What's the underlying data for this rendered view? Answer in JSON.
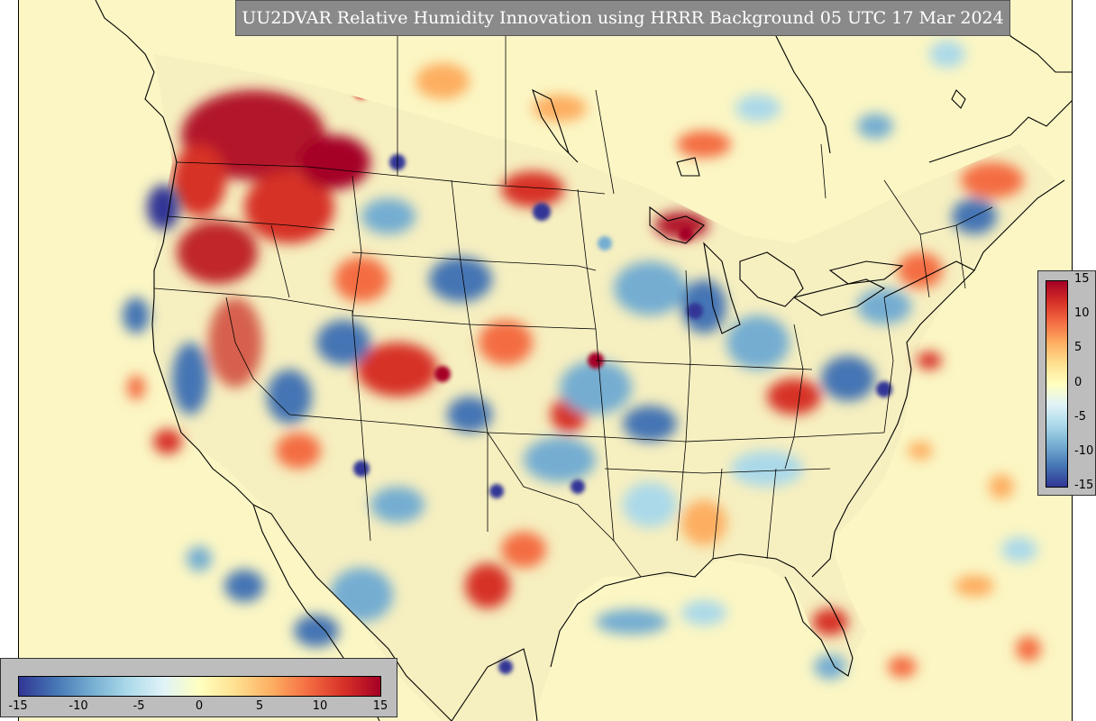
{
  "title": "UU2DVAR Relative Humidity Innovation using HRRR Background 05 UTC 17 Mar 2024",
  "colorbar": {
    "min": -15,
    "max": 15,
    "ticks_vertical": [
      "15",
      "10",
      "5",
      "0",
      "-5",
      "-10",
      "-15"
    ],
    "ticks_horizontal": [
      "-15",
      "-10",
      "-5",
      "0",
      "5",
      "10",
      "15"
    ],
    "colors": [
      "#313695",
      "#4575b4",
      "#74add1",
      "#abd9e9",
      "#e0f3f8",
      "#ffffbf",
      "#fee090",
      "#fdae61",
      "#f46d43",
      "#d73027",
      "#a50026"
    ]
  },
  "map": {
    "background_color": "#fbf6c4",
    "boundary_color": "#000000"
  }
}
